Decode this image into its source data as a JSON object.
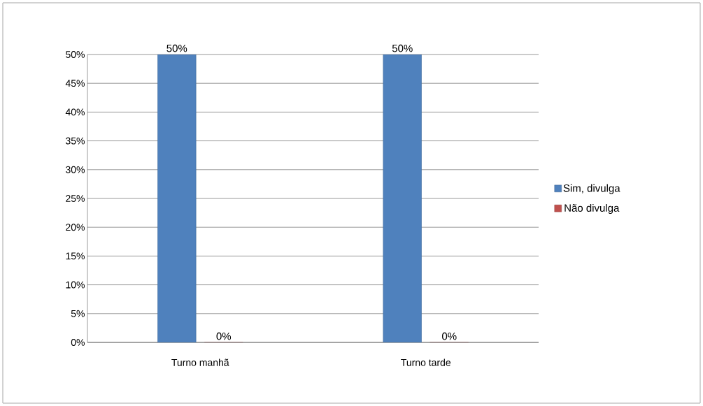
{
  "chart_data": {
    "type": "bar",
    "categories": [
      "Turno manhã",
      "Turno tarde"
    ],
    "series": [
      {
        "name": "Sim, divulga",
        "color": "#4f81bd",
        "values": [
          50,
          50
        ],
        "value_labels": [
          "50%",
          "50%"
        ]
      },
      {
        "name": "Não divulga",
        "color": "#c0504d",
        "values": [
          0,
          0
        ],
        "value_labels": [
          "0%",
          "0%"
        ]
      }
    ],
    "ylim": [
      0,
      50
    ],
    "yticks": [
      {
        "value": 0,
        "label": "0%"
      },
      {
        "value": 5,
        "label": "5%"
      },
      {
        "value": 10,
        "label": "10%"
      },
      {
        "value": 15,
        "label": "15%"
      },
      {
        "value": 20,
        "label": "20%"
      },
      {
        "value": 25,
        "label": "25%"
      },
      {
        "value": 30,
        "label": "30%"
      },
      {
        "value": 35,
        "label": "35%"
      },
      {
        "value": 40,
        "label": "40%"
      },
      {
        "value": 45,
        "label": "45%"
      },
      {
        "value": 50,
        "label": "50%"
      }
    ],
    "grid": "y",
    "legend": "right"
  }
}
